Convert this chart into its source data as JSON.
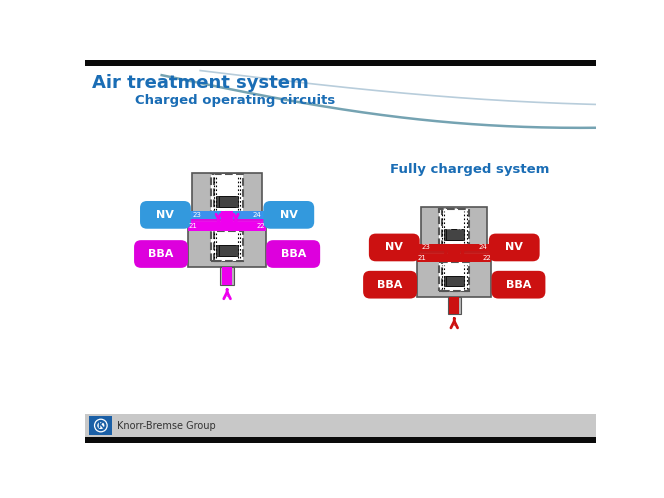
{
  "bg_color": "#ffffff",
  "black_bar_color": "#0a0a0a",
  "title": "Air treatment system",
  "title_color": "#1a6db5",
  "title_fontsize": 13,
  "subtitle1": "Charged operating circuits",
  "subtitle2": "Fully charged system",
  "subtitle_color": "#1a6db5",
  "subtitle_fontsize": 9.5,
  "footer_text": "Knorr-Bremse Group",
  "footer_bg": "#c8c8c8",
  "footer_logo_bg": "#1a5fa6",
  "nv_color_left": "#3399dd",
  "bba_color_left": "#dd00dd",
  "fill_color_left": "#ee00ee",
  "fill_top_left": "#3399ee",
  "arrow_color_left": "#ee44ee",
  "nv_color_right": "#cc1111",
  "bba_color_right": "#cc1111",
  "fill_color_right": "#cc1111",
  "fill_top_right": "#cc1111",
  "arrow_color_right": "#cc1111",
  "gray_light": "#d0d0d0",
  "gray_body": "#b8b8b8",
  "gray_dark": "#555555",
  "white": "#ffffff",
  "dark_piston": "#444444",
  "curve_color1": "#9ab8cc",
  "curve_color2": "#6699aa"
}
